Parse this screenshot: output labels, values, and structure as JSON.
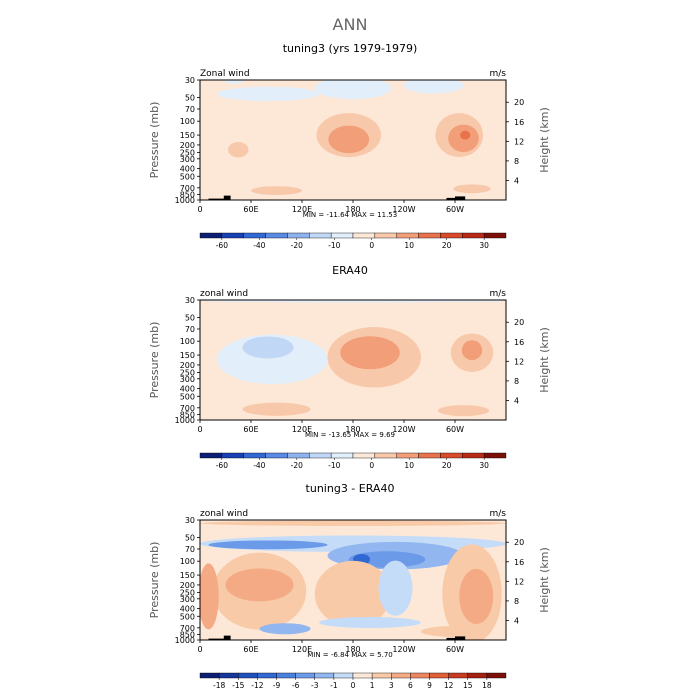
{
  "figure": {
    "title": "ANN"
  },
  "chart_data": [
    {
      "type": "heatmap",
      "title": "tuning3 (yrs 1979-1979)",
      "left_label": "Zonal wind",
      "right_label": "m/s",
      "ylabel": "Pressure (mb)",
      "ylabel_right": "Height (km)",
      "y_scale": "log",
      "ylim": [
        1000,
        30
      ],
      "x_ticks": [
        "0",
        "60E",
        "120E",
        "180",
        "120W",
        "60W"
      ],
      "y_ticks": [
        "30",
        "50",
        "70",
        "100",
        "150",
        "200",
        "250",
        "300",
        "400",
        "500",
        "700",
        "850",
        "1000"
      ],
      "height_ticks": [
        "4",
        "8",
        "12",
        "16",
        "20"
      ],
      "stats_text": "MIN = -11.64   MAX =  11.53",
      "colorbar_labels": [
        "-60",
        "-40",
        "-20",
        "-10",
        "0",
        "10",
        "20",
        "30"
      ],
      "colorbar_colors": [
        "#0c1f74",
        "#1840b4",
        "#3268d4",
        "#5a8ae4",
        "#8eb2ee",
        "#c0d8f6",
        "#e2eefa",
        "#fde8d8",
        "#f8c8aa",
        "#f29e78",
        "#e8724c",
        "#d84a2a",
        "#b82a18",
        "#7c1008"
      ],
      "background_level": 7,
      "features": [
        {
          "lon": 40,
          "lat_p": 25,
          "rx": 18,
          "ry": 18,
          "level": 6
        },
        {
          "lon": 80,
          "lat_p": 45,
          "rx": 60,
          "ry": 13,
          "level": 6
        },
        {
          "lon": 180,
          "lat_p": 38,
          "rx": 45,
          "ry": 20,
          "level": 6
        },
        {
          "lon": 275,
          "lat_p": 35,
          "rx": 35,
          "ry": 15,
          "level": 6
        },
        {
          "lon": 175,
          "lat_p": 150,
          "rx": 38,
          "ry": 40,
          "level": 8
        },
        {
          "lon": 175,
          "lat_p": 170,
          "rx": 24,
          "ry": 25,
          "level": 9
        },
        {
          "lon": 305,
          "lat_p": 150,
          "rx": 28,
          "ry": 40,
          "level": 8
        },
        {
          "lon": 310,
          "lat_p": 165,
          "rx": 18,
          "ry": 25,
          "level": 9
        },
        {
          "lon": 312,
          "lat_p": 150,
          "rx": 6,
          "ry": 8,
          "level": 10
        },
        {
          "lon": 45,
          "lat_p": 230,
          "rx": 12,
          "ry": 14,
          "level": 8
        },
        {
          "lon": 90,
          "lat_p": 760,
          "rx": 30,
          "ry": 8,
          "level": 8
        },
        {
          "lon": 320,
          "lat_p": 720,
          "rx": 22,
          "ry": 8,
          "level": 8
        }
      ],
      "topo": [
        {
          "lon": 10,
          "w": 22,
          "p": 960
        },
        {
          "lon": 28,
          "w": 8,
          "p": 880
        },
        {
          "lon": 290,
          "w": 10,
          "p": 940
        },
        {
          "lon": 300,
          "w": 12,
          "p": 900
        }
      ]
    },
    {
      "type": "heatmap",
      "title": "ERA40",
      "left_label": "zonal wind",
      "right_label": "m/s",
      "ylabel": "Pressure (mb)",
      "ylabel_right": "Height (km)",
      "y_scale": "log",
      "ylim": [
        1000,
        30
      ],
      "x_ticks": [
        "0",
        "60E",
        "120E",
        "180",
        "120W",
        "60W"
      ],
      "y_ticks": [
        "30",
        "50",
        "70",
        "100",
        "150",
        "200",
        "250",
        "300",
        "400",
        "500",
        "700",
        "850",
        "1000"
      ],
      "height_ticks": [
        "4",
        "8",
        "12",
        "16",
        "20"
      ],
      "stats_text": "MIN = -13.65   MAX =   9.69",
      "colorbar_labels": [
        "-60",
        "-40",
        "-20",
        "-10",
        "0",
        "10",
        "20",
        "30"
      ],
      "colorbar_colors": [
        "#0c1f74",
        "#1840b4",
        "#3268d4",
        "#5a8ae4",
        "#8eb2ee",
        "#c0d8f6",
        "#e2eefa",
        "#fde8d8",
        "#f8c8aa",
        "#f29e78",
        "#e8724c",
        "#d84a2a",
        "#b82a18",
        "#7c1008"
      ],
      "background_level": 7,
      "features": [
        {
          "lon": 180,
          "lat_p": 31,
          "rx": 180,
          "ry": 2,
          "level": 6
        },
        {
          "lon": 85,
          "lat_p": 170,
          "rx": 65,
          "ry": 45,
          "level": 6
        },
        {
          "lon": 80,
          "lat_p": 120,
          "rx": 30,
          "ry": 20,
          "level": 5
        },
        {
          "lon": 205,
          "lat_p": 160,
          "rx": 55,
          "ry": 55,
          "level": 8
        },
        {
          "lon": 200,
          "lat_p": 140,
          "rx": 35,
          "ry": 30,
          "level": 9
        },
        {
          "lon": 320,
          "lat_p": 140,
          "rx": 25,
          "ry": 35,
          "level": 8
        },
        {
          "lon": 320,
          "lat_p": 130,
          "rx": 12,
          "ry": 18,
          "level": 9
        },
        {
          "lon": 90,
          "lat_p": 730,
          "rx": 40,
          "ry": 12,
          "level": 8
        },
        {
          "lon": 310,
          "lat_p": 760,
          "rx": 30,
          "ry": 10,
          "level": 8
        }
      ],
      "topo": []
    },
    {
      "type": "heatmap",
      "title": "tuning3 - ERA40",
      "left_label": "zonal wind",
      "right_label": "m/s",
      "ylabel": "Pressure (mb)",
      "ylabel_right": "Height (km)",
      "y_scale": "log",
      "ylim": [
        1000,
        30
      ],
      "x_ticks": [
        "0",
        "60E",
        "120E",
        "180",
        "120W",
        "60W"
      ],
      "y_ticks": [
        "30",
        "50",
        "70",
        "100",
        "150",
        "200",
        "250",
        "300",
        "400",
        "500",
        "700",
        "850",
        "1000"
      ],
      "height_ticks": [
        "4",
        "8",
        "12",
        "16",
        "20"
      ],
      "stats_text": "MIN =  -6.84   MAX =   5.70",
      "colorbar_labels": [
        "-18",
        "-15",
        "-12",
        "-9",
        "-6",
        "-3",
        "-1",
        "0",
        "1",
        "3",
        "6",
        "9",
        "12",
        "15",
        "18"
      ],
      "colorbar_colors": [
        "#0c1f74",
        "#16389c",
        "#2050bc",
        "#3268d4",
        "#4a80e0",
        "#6a9ae8",
        "#92b6f0",
        "#c4dcf8",
        "#fde8d8",
        "#f8caa8",
        "#f4aa84",
        "#ec8660",
        "#e06038",
        "#c83c20",
        "#a42010",
        "#7c1008"
      ],
      "background_level": 8,
      "features": [
        {
          "lon": 180,
          "lat_p": 33,
          "rx": 180,
          "ry": 5,
          "level": 9
        },
        {
          "lon": 180,
          "lat_p": 60,
          "rx": 180,
          "ry": 15,
          "level": 7
        },
        {
          "lon": 80,
          "lat_p": 62,
          "rx": 70,
          "ry": 8,
          "level": 5
        },
        {
          "lon": 230,
          "lat_p": 85,
          "rx": 80,
          "ry": 25,
          "level": 6
        },
        {
          "lon": 220,
          "lat_p": 95,
          "rx": 45,
          "ry": 15,
          "level": 5
        },
        {
          "lon": 190,
          "lat_p": 95,
          "rx": 10,
          "ry": 10,
          "level": 3
        },
        {
          "lon": 70,
          "lat_p": 240,
          "rx": 55,
          "ry": 70,
          "level": 9
        },
        {
          "lon": 70,
          "lat_p": 200,
          "rx": 40,
          "ry": 30,
          "level": 10
        },
        {
          "lon": 180,
          "lat_p": 260,
          "rx": 45,
          "ry": 60,
          "level": 9
        },
        {
          "lon": 230,
          "lat_p": 220,
          "rx": 20,
          "ry": 50,
          "level": 7
        },
        {
          "lon": 320,
          "lat_p": 260,
          "rx": 35,
          "ry": 90,
          "level": 9
        },
        {
          "lon": 325,
          "lat_p": 280,
          "rx": 20,
          "ry": 50,
          "level": 10
        },
        {
          "lon": 10,
          "lat_p": 280,
          "rx": 12,
          "ry": 60,
          "level": 10
        },
        {
          "lon": 100,
          "lat_p": 720,
          "rx": 30,
          "ry": 10,
          "level": 6
        },
        {
          "lon": 200,
          "lat_p": 600,
          "rx": 60,
          "ry": 10,
          "level": 7
        },
        {
          "lon": 300,
          "lat_p": 780,
          "rx": 40,
          "ry": 10,
          "level": 9
        }
      ],
      "topo": [
        {
          "lon": 10,
          "w": 22,
          "p": 960
        },
        {
          "lon": 28,
          "w": 8,
          "p": 880
        },
        {
          "lon": 290,
          "w": 10,
          "p": 940
        },
        {
          "lon": 300,
          "w": 12,
          "p": 900
        }
      ]
    }
  ]
}
